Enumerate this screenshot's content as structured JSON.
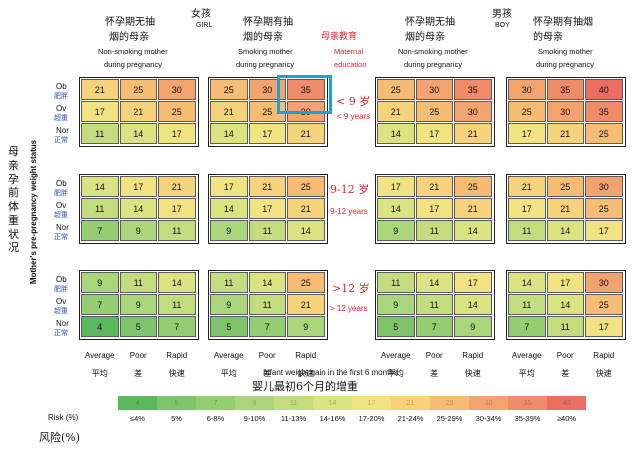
{
  "title_cn": "母亲孕前体重状况",
  "ylabel_en": "Mother's pre-pregnancy weight status",
  "xlabel_en": "Infant weight gain in the first 6 months",
  "xlabel_cn": "婴儿最初6个月的增重",
  "risk_label": "Risk (%)",
  "risk_label_cn": "风险(%)",
  "girl_cn": "女孩",
  "girl_en": "GIRL",
  "boy_cn": "男孩",
  "boy_en": "BOY",
  "maternal_cn": "母亲教育",
  "maternal_en_1": "Maternal",
  "maternal_en_2": "education",
  "groups": {
    "nonsmoke_cn_1": "怀孕期无抽",
    "nonsmoke_cn_2": "烟的母亲",
    "nonsmoke_en_1": "Non-smoking mother",
    "nonsmoke_en_2": "during pregnancy",
    "smoke_cn_1": "怀孕期有抽",
    "smoke_cn_2": "烟的母亲",
    "smoke_en_1": "Smoking mother",
    "smoke_en_2": "during pregnancy",
    "boy_smoke_cn_1": "怀孕期有抽烟",
    "boy_smoke_cn_2": "的母亲",
    "boy_smoke_en_1": "Smoking mother",
    "boy_smoke_en_2": "during pregnancy"
  },
  "row_labels": [
    "Ob",
    "Ov",
    "Nor"
  ],
  "row_labels_cn": [
    "肥胖",
    "超重",
    "正常"
  ],
  "col_labels": [
    "Average",
    "Poor",
    "Rapid"
  ],
  "col_labels_cn": [
    "平均",
    "差",
    "快速"
  ],
  "age_bands": [
    {
      "cn": "< 9 岁",
      "en": "< 9 years"
    },
    {
      "cn": "9-12 岁",
      "en": "9-12 years"
    },
    {
      "cn": ">12 岁",
      "en": "> 12 years"
    }
  ],
  "legend": {
    "numbers": [
      "4",
      "5",
      "7",
      "9",
      "11",
      "14",
      "17",
      "21",
      "25",
      "30",
      "35",
      "40"
    ],
    "ranges": [
      "≤4%",
      "5%",
      "6-8%",
      "9-10%",
      "11-13%",
      "14-16%",
      "17-20%",
      "21-24%",
      "25-29%",
      "30-34%",
      "35-39%",
      "≥40%"
    ],
    "colors": [
      "#5cb85c",
      "#7ec46b",
      "#95ce72",
      "#aad57a",
      "#c3dd7e",
      "#d9e37f",
      "#f2e382",
      "#f6d27a",
      "#f6bc74",
      "#f3a36d",
      "#ef8b68",
      "#ec6d62"
    ]
  },
  "chart_data": {
    "type": "heatmap",
    "note_cn": "",
    "panels": [
      {
        "sex": "GIRL",
        "smoking": "Non-smoking mother during pregnancy",
        "education": "< 9 years",
        "rows": [
          "Ob",
          "Ov",
          "Nor"
        ],
        "cols": [
          "Average",
          "Poor",
          "Rapid"
        ],
        "values": [
          [
            21,
            25,
            30
          ],
          [
            17,
            21,
            25
          ],
          [
            11,
            14,
            17
          ]
        ]
      },
      {
        "sex": "GIRL",
        "smoking": "Smoking mother during pregnancy",
        "education": "< 9 years",
        "rows": [
          "Ob",
          "Ov",
          "Nor"
        ],
        "cols": [
          "Average",
          "Poor",
          "Rapid"
        ],
        "values": [
          [
            25,
            30,
            35
          ],
          [
            21,
            25,
            30
          ],
          [
            14,
            17,
            21
          ]
        ]
      },
      {
        "sex": "BOY",
        "smoking": "Non-smoking mother during pregnancy",
        "education": "< 9 years",
        "rows": [
          "Ob",
          "Ov",
          "Nor"
        ],
        "cols": [
          "Average",
          "Poor",
          "Rapid"
        ],
        "values": [
          [
            25,
            30,
            35
          ],
          [
            21,
            25,
            30
          ],
          [
            14,
            17,
            21
          ]
        ]
      },
      {
        "sex": "BOY",
        "smoking": "Smoking mother during pregnancy",
        "education": "< 9 years",
        "rows": [
          "Ob",
          "Ov",
          "Nor"
        ],
        "cols": [
          "Average",
          "Poor",
          "Rapid"
        ],
        "values": [
          [
            30,
            35,
            40
          ],
          [
            25,
            30,
            35
          ],
          [
            17,
            21,
            25
          ]
        ]
      },
      {
        "sex": "GIRL",
        "smoking": "Non-smoking mother during pregnancy",
        "education": "9-12 years",
        "rows": [
          "Ob",
          "Ov",
          "Nor"
        ],
        "cols": [
          "Average",
          "Poor",
          "Rapid"
        ],
        "values": [
          [
            14,
            17,
            21
          ],
          [
            11,
            14,
            17
          ],
          [
            7,
            9,
            11
          ]
        ]
      },
      {
        "sex": "GIRL",
        "smoking": "Smoking mother during pregnancy",
        "education": "9-12 years",
        "rows": [
          "Ob",
          "Ov",
          "Nor"
        ],
        "cols": [
          "Average",
          "Poor",
          "Rapid"
        ],
        "values": [
          [
            17,
            21,
            25
          ],
          [
            14,
            17,
            21
          ],
          [
            9,
            11,
            14
          ]
        ]
      },
      {
        "sex": "BOY",
        "smoking": "Non-smoking mother during pregnancy",
        "education": "9-12 years",
        "rows": [
          "Ob",
          "Ov",
          "Nor"
        ],
        "cols": [
          "Average",
          "Poor",
          "Rapid"
        ],
        "values": [
          [
            17,
            21,
            25
          ],
          [
            14,
            17,
            21
          ],
          [
            9,
            11,
            14
          ]
        ]
      },
      {
        "sex": "BOY",
        "smoking": "Smoking mother during pregnancy",
        "education": "9-12 years",
        "rows": [
          "Ob",
          "Ov",
          "Nor"
        ],
        "cols": [
          "Average",
          "Poor",
          "Rapid"
        ],
        "values": [
          [
            21,
            25,
            30
          ],
          [
            17,
            21,
            25
          ],
          [
            11,
            14,
            17
          ]
        ]
      },
      {
        "sex": "GIRL",
        "smoking": "Non-smoking mother during pregnancy",
        "education": "> 12 years",
        "rows": [
          "Ob",
          "Ov",
          "Nor"
        ],
        "cols": [
          "Average",
          "Poor",
          "Rapid"
        ],
        "values": [
          [
            9,
            11,
            14
          ],
          [
            7,
            9,
            11
          ],
          [
            4,
            5,
            7
          ]
        ]
      },
      {
        "sex": "GIRL",
        "smoking": "Smoking mother during pregnancy",
        "education": "> 12 years",
        "rows": [
          "Ob",
          "Ov",
          "Nor"
        ],
        "cols": [
          "Average",
          "Poor",
          "Rapid"
        ],
        "values": [
          [
            11,
            14,
            25
          ],
          [
            9,
            11,
            21
          ],
          [
            5,
            7,
            9
          ]
        ]
      },
      {
        "sex": "BOY",
        "smoking": "Non-smoking mother during pregnancy",
        "education": "> 12 years",
        "rows": [
          "Ob",
          "Ov",
          "Nor"
        ],
        "cols": [
          "Average",
          "Poor",
          "Rapid"
        ],
        "values": [
          [
            11,
            14,
            17
          ],
          [
            9,
            11,
            14
          ],
          [
            5,
            7,
            9
          ]
        ]
      },
      {
        "sex": "BOY",
        "smoking": "Smoking mother during pregnancy",
        "education": "> 12 years",
        "rows": [
          "Ob",
          "Ov",
          "Nor"
        ],
        "cols": [
          "Average",
          "Poor",
          "Rapid"
        ],
        "values": [
          [
            14,
            17,
            30
          ],
          [
            11,
            14,
            25
          ],
          [
            7,
            11,
            17
          ]
        ]
      }
    ]
  }
}
